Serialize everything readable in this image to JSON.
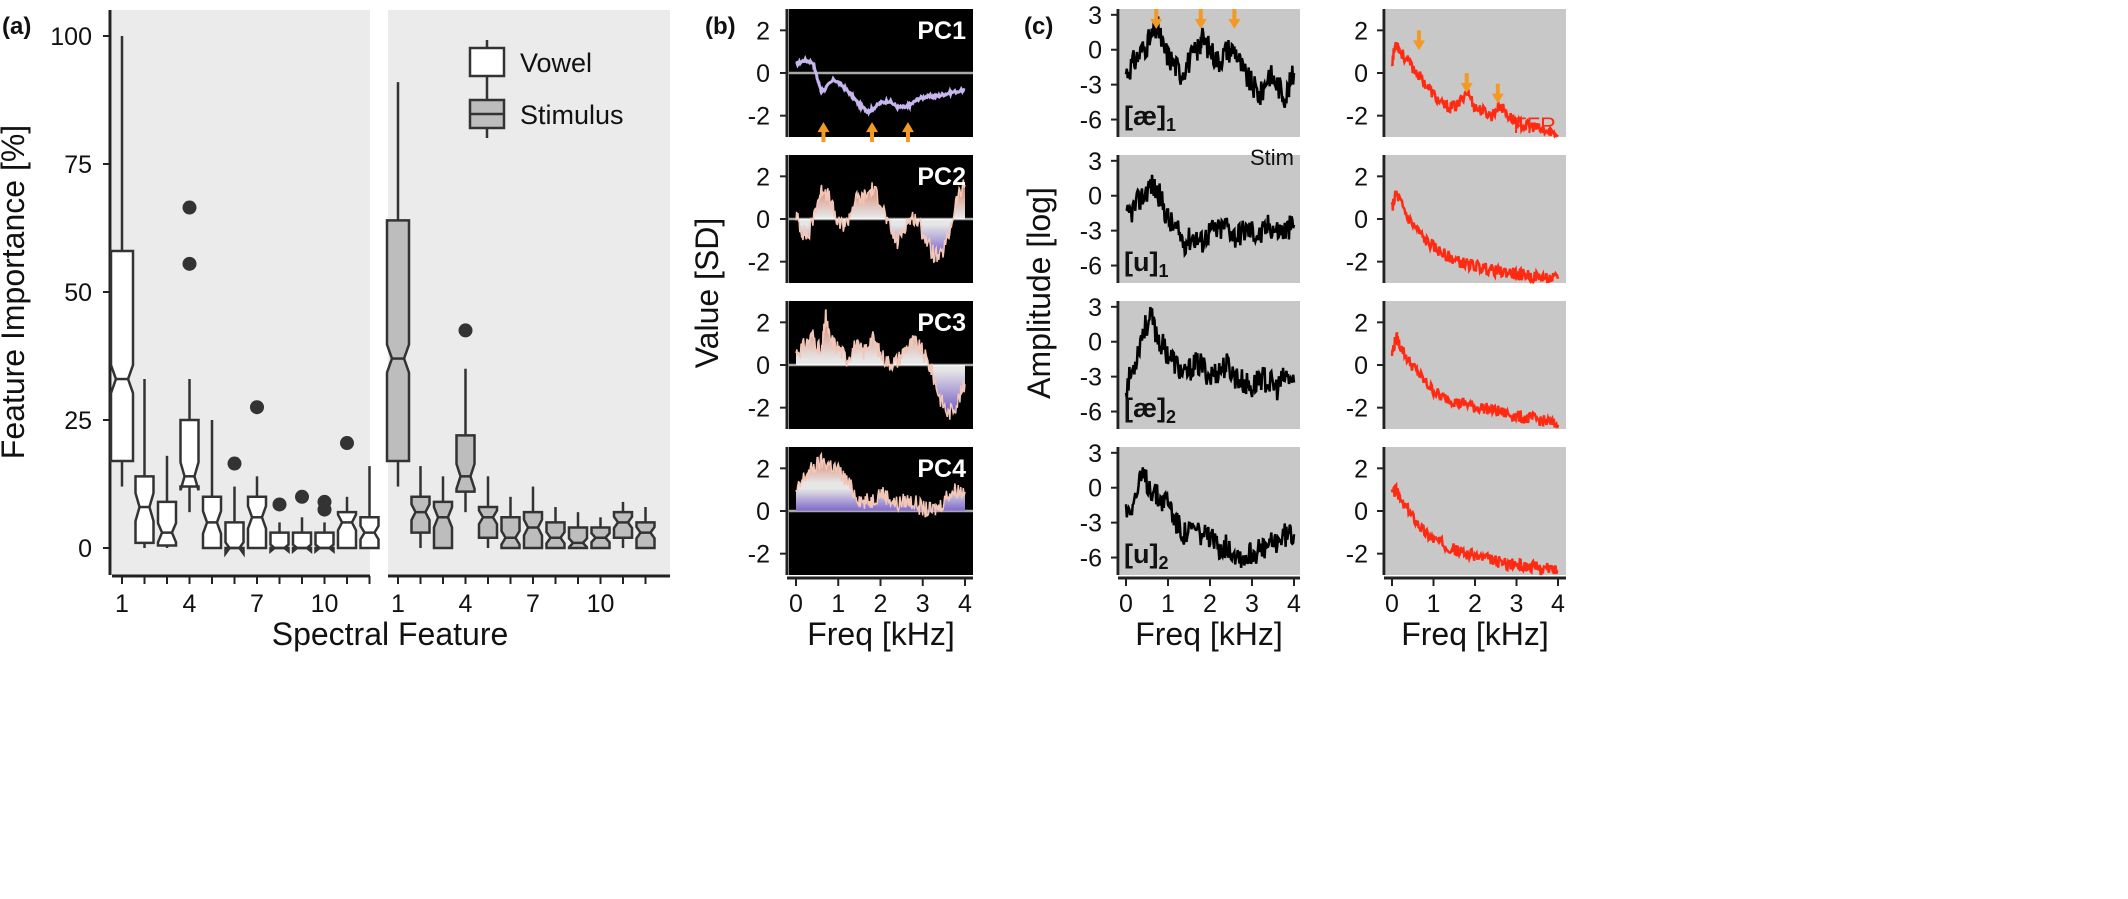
{
  "colors": {
    "panel_bg": "#ebebeb",
    "spec_bg": "#c8c8c8",
    "pc_bg": "#000000",
    "box_vowel": "#ffffff",
    "box_stim": "#bdbdbd",
    "box_line": "#333333",
    "outlier": "#333333",
    "stim_line": "#000000",
    "ffr_line": "#ff2a12",
    "arrow": "#f39a25",
    "pc_pos": "#f07c5e",
    "pc_neg": "#6a4bd6",
    "zero_line": "#a9a9a9"
  },
  "chart_data": [
    {
      "panel": "(a)",
      "type": "box",
      "xlabel": "Spectral Feature",
      "ylabel": "Feature Importance [%]",
      "ylim": [
        0,
        100
      ],
      "yticks": [
        0,
        25,
        50,
        75,
        100
      ],
      "xticks": [
        1,
        4,
        7,
        10
      ],
      "legend": {
        "position": "top-right",
        "entries": [
          "Vowel",
          "Stimulus"
        ]
      },
      "series": [
        {
          "name": "Vowel",
          "boxes": [
            {
              "feature": 1,
              "min": 12,
              "q1": 17,
              "median": 33,
              "q3": 58,
              "max": 100,
              "outliers": []
            },
            {
              "feature": 2,
              "min": 0,
              "q1": 1,
              "median": 8,
              "q3": 14,
              "max": 33,
              "outliers": []
            },
            {
              "feature": 3,
              "min": 0,
              "q1": 0.5,
              "median": 3,
              "q3": 9,
              "max": 18,
              "outliers": []
            },
            {
              "feature": 4,
              "min": 7,
              "q1": 12,
              "median": 14,
              "q3": 25,
              "max": 33,
              "outliers": [
                55.5,
                66.5
              ]
            },
            {
              "feature": 5,
              "min": 0,
              "q1": 0,
              "median": 5,
              "q3": 10,
              "max": 25,
              "outliers": []
            },
            {
              "feature": 6,
              "min": 0,
              "q1": 0,
              "median": 0,
              "q3": 5,
              "max": 12,
              "outliers": [
                16.5
              ]
            },
            {
              "feature": 7,
              "min": 0,
              "q1": 0,
              "median": 6,
              "q3": 10,
              "max": 14,
              "outliers": [
                27.5
              ]
            },
            {
              "feature": 8,
              "min": 0,
              "q1": 0,
              "median": 0,
              "q3": 3,
              "max": 5,
              "outliers": [
                8.5
              ]
            },
            {
              "feature": 9,
              "min": 0,
              "q1": 0,
              "median": 0,
              "q3": 3,
              "max": 6,
              "outliers": [
                10
              ]
            },
            {
              "feature": 10,
              "min": 0,
              "q1": 0,
              "median": 0,
              "q3": 3,
              "max": 5,
              "outliers": [
                7.5,
                9
              ]
            },
            {
              "feature": 11,
              "min": 0,
              "q1": 0,
              "median": 5,
              "q3": 7,
              "max": 10,
              "outliers": [
                20.5
              ]
            },
            {
              "feature": 12,
              "min": 0,
              "q1": 0,
              "median": 3,
              "q3": 6,
              "max": 16,
              "outliers": []
            }
          ]
        },
        {
          "name": "Stimulus",
          "boxes": [
            {
              "feature": 1,
              "min": 12,
              "q1": 17,
              "median": 37,
              "q3": 64,
              "max": 91,
              "outliers": []
            },
            {
              "feature": 2,
              "min": 0,
              "q1": 3,
              "median": 7,
              "q3": 10,
              "max": 16,
              "outliers": []
            },
            {
              "feature": 3,
              "min": 0,
              "q1": 0,
              "median": 6,
              "q3": 9,
              "max": 14,
              "outliers": []
            },
            {
              "feature": 4,
              "min": 7,
              "q1": 11,
              "median": 14,
              "q3": 22,
              "max": 35,
              "outliers": [
                42.5
              ]
            },
            {
              "feature": 5,
              "min": 0,
              "q1": 2,
              "median": 6,
              "q3": 8,
              "max": 14,
              "outliers": []
            },
            {
              "feature": 6,
              "min": 0,
              "q1": 0,
              "median": 2,
              "q3": 6,
              "max": 10,
              "outliers": []
            },
            {
              "feature": 7,
              "min": 0,
              "q1": 0,
              "median": 4,
              "q3": 7,
              "max": 12,
              "outliers": []
            },
            {
              "feature": 8,
              "min": 0,
              "q1": 0,
              "median": 2,
              "q3": 5,
              "max": 8,
              "outliers": []
            },
            {
              "feature": 9,
              "min": 0,
              "q1": 0,
              "median": 1,
              "q3": 4,
              "max": 7,
              "outliers": []
            },
            {
              "feature": 10,
              "min": 0,
              "q1": 0,
              "median": 2,
              "q3": 4,
              "max": 6,
              "outliers": []
            },
            {
              "feature": 11,
              "min": 0,
              "q1": 2,
              "median": 5,
              "q3": 7,
              "max": 9,
              "outliers": []
            },
            {
              "feature": 12,
              "min": 0,
              "q1": 0,
              "median": 3,
              "q3": 5,
              "max": 8,
              "outliers": []
            }
          ]
        }
      ]
    },
    {
      "panel": "(b)",
      "type": "line",
      "xlabel": "Freq [kHz]",
      "ylabel": "Value [SD]",
      "xlim": [
        0,
        4
      ],
      "ylim": [
        -3,
        3
      ],
      "xticks": [
        0,
        1,
        2,
        3,
        4
      ],
      "yticks": [
        -2,
        0,
        2
      ],
      "series": [
        {
          "name": "PC1",
          "x": [
            0,
            0.2,
            0.4,
            0.5,
            0.6,
            0.7,
            0.9,
            1.1,
            1.3,
            1.5,
            1.7,
            1.8,
            2.0,
            2.2,
            2.4,
            2.6,
            2.7,
            2.9,
            3.1,
            3.3,
            3.5,
            3.7,
            4.0
          ],
          "y": [
            0.4,
            0.6,
            0.5,
            -0.2,
            -0.9,
            -0.7,
            -0.3,
            -0.6,
            -1.0,
            -1.5,
            -1.8,
            -1.7,
            -1.4,
            -1.3,
            -1.6,
            -1.6,
            -1.5,
            -1.2,
            -1.1,
            -1.1,
            -1.0,
            -0.9,
            -0.8
          ],
          "arrows_x": [
            0.65,
            1.8,
            2.65
          ]
        },
        {
          "name": "PC2",
          "x": [
            0,
            0.15,
            0.3,
            0.5,
            0.65,
            0.8,
            1.0,
            1.2,
            1.4,
            1.6,
            1.8,
            2.0,
            2.2,
            2.4,
            2.6,
            2.8,
            3.0,
            3.2,
            3.4,
            3.6,
            3.8,
            4.0
          ],
          "y": [
            0.2,
            -0.6,
            -0.8,
            0.8,
            1.5,
            0.9,
            -0.3,
            -0.2,
            0.9,
            1.0,
            1.4,
            0.9,
            -0.4,
            -1.1,
            -0.2,
            0.1,
            -0.6,
            -1.5,
            -1.9,
            -0.9,
            0.9,
            1.6
          ]
        },
        {
          "name": "PC3",
          "x": [
            0,
            0.2,
            0.4,
            0.6,
            0.7,
            0.8,
            1.0,
            1.2,
            1.4,
            1.6,
            1.8,
            2.0,
            2.2,
            2.4,
            2.6,
            2.8,
            3.0,
            3.2,
            3.4,
            3.6,
            3.8,
            4.0
          ],
          "y": [
            0.6,
            0.9,
            1.4,
            0.5,
            2.3,
            1.2,
            0.8,
            0.3,
            0.9,
            0.6,
            1.3,
            0.5,
            0.1,
            0.2,
            0.8,
            1.1,
            0.6,
            -0.2,
            -1.5,
            -2.3,
            -1.8,
            -0.9
          ]
        },
        {
          "name": "PC4",
          "x": [
            0,
            0.2,
            0.4,
            0.6,
            0.8,
            1.0,
            1.2,
            1.4,
            1.6,
            1.8,
            2.0,
            2.2,
            2.4,
            2.6,
            2.8,
            3.0,
            3.2,
            3.4,
            3.6,
            3.8,
            4.0
          ],
          "y": [
            0.8,
            1.6,
            2.0,
            2.3,
            2.2,
            1.9,
            1.4,
            0.8,
            0.4,
            0.5,
            0.9,
            0.6,
            0.3,
            0.5,
            0.4,
            0.1,
            0,
            0.2,
            0.8,
            1.0,
            0.9
          ]
        }
      ]
    },
    {
      "panel": "(c)",
      "type": "line",
      "xlabel": "Freq [kHz]",
      "ylabel": "Amplitude [log]",
      "xlim": [
        0,
        4
      ],
      "xticks": [
        0,
        1,
        2,
        3,
        4
      ],
      "stim_yticks": [
        3,
        0,
        -3,
        -6
      ],
      "ffr_yticks": [
        2,
        0,
        -2
      ],
      "stim_label": "Stim",
      "ffr_label": "FFR",
      "rows": [
        {
          "label_prefix": "[æ]",
          "label_sub": "1",
          "stim": {
            "x": [
              0,
              0.2,
              0.4,
              0.6,
              0.75,
              0.9,
              1.1,
              1.3,
              1.5,
              1.7,
              1.8,
              2.0,
              2.2,
              2.4,
              2.6,
              2.8,
              3.0,
              3.2,
              3.4,
              3.6,
              3.8,
              4.0
            ],
            "y": [
              -2,
              -1,
              0,
              1,
              2,
              0,
              -1,
              -2,
              -1,
              0,
              1,
              0,
              -1,
              0,
              0,
              -2,
              -3,
              -4,
              -2,
              -3,
              -4,
              -2
            ]
          },
          "ffr": {
            "x": [
              0,
              0.1,
              0.2,
              0.4,
              0.6,
              0.8,
              1.0,
              1.2,
              1.4,
              1.6,
              1.8,
              2.0,
              2.2,
              2.4,
              2.6,
              2.8,
              3.0,
              3.2,
              3.4,
              3.6,
              3.8,
              4.0
            ],
            "y": [
              0.5,
              1.5,
              1.0,
              0.5,
              0,
              -0.5,
              -1.0,
              -1.5,
              -1.6,
              -1.5,
              -0.8,
              -1.6,
              -1.8,
              -2.0,
              -1.5,
              -2.0,
              -2.3,
              -2.5,
              -2.5,
              -2.7,
              -2.8,
              -2.9
            ]
          },
          "stim_arrows_x": [
            0.72,
            1.78,
            2.58
          ],
          "ffr_arrows_x": [
            0.65,
            1.8,
            2.55
          ]
        },
        {
          "label_prefix": "[u]",
          "label_sub": "1",
          "stim": {
            "x": [
              0,
              0.2,
              0.4,
              0.6,
              0.8,
              1.0,
              1.2,
              1.4,
              1.6,
              1.8,
              2.0,
              2.2,
              2.4,
              2.6,
              2.8,
              3.0,
              3.2,
              3.4,
              3.6,
              3.8,
              4.0
            ],
            "y": [
              -2,
              -1,
              0,
              1,
              0,
              -2,
              -3,
              -4,
              -3.5,
              -4,
              -3,
              -3,
              -2.5,
              -3.5,
              -3,
              -3,
              -3.5,
              -2.5,
              -3,
              -3,
              -2.5
            ]
          },
          "ffr": {
            "x": [
              0,
              0.1,
              0.2,
              0.4,
              0.6,
              0.8,
              1.0,
              1.2,
              1.4,
              1.6,
              1.8,
              2.0,
              2.2,
              2.4,
              2.6,
              2.8,
              3.0,
              3.2,
              3.4,
              3.6,
              3.8,
              4.0
            ],
            "y": [
              0.5,
              1.2,
              0.8,
              0,
              -0.5,
              -1.0,
              -1.3,
              -1.6,
              -1.8,
              -2.0,
              -2.1,
              -2.2,
              -2.3,
              -2.4,
              -2.5,
              -2.5,
              -2.6,
              -2.6,
              -2.7,
              -2.7,
              -2.8,
              -2.8
            ]
          }
        },
        {
          "label_prefix": "[æ]",
          "label_sub": "2",
          "stim": {
            "x": [
              0,
              0.2,
              0.4,
              0.6,
              0.8,
              1.0,
              1.2,
              1.4,
              1.6,
              1.8,
              2.0,
              2.2,
              2.4,
              2.6,
              2.8,
              3.0,
              3.2,
              3.4,
              3.6,
              3.8,
              4.0
            ],
            "y": [
              -4,
              -2,
              1,
              2,
              0,
              -1,
              -2,
              -3,
              -2,
              -2,
              -3,
              -2.5,
              -2,
              -3,
              -3.5,
              -4,
              -3,
              -3.5,
              -4,
              -3,
              -3.5
            ]
          },
          "ffr": {
            "x": [
              0,
              0.1,
              0.2,
              0.4,
              0.6,
              0.8,
              1.0,
              1.2,
              1.4,
              1.6,
              1.8,
              2.0,
              2.2,
              2.4,
              2.6,
              2.8,
              3.0,
              3.2,
              3.4,
              3.6,
              3.8,
              4.0
            ],
            "y": [
              0.5,
              1.3,
              0.9,
              0.2,
              -0.3,
              -0.8,
              -1.2,
              -1.5,
              -1.6,
              -1.8,
              -1.8,
              -2.0,
              -2.0,
              -2.1,
              -2.2,
              -2.3,
              -2.4,
              -2.5,
              -2.5,
              -2.6,
              -2.7,
              -2.8
            ]
          }
        },
        {
          "label_prefix": "[u]",
          "label_sub": "2",
          "stim": {
            "x": [
              0,
              0.2,
              0.4,
              0.6,
              0.8,
              1.0,
              1.2,
              1.4,
              1.6,
              1.8,
              2.0,
              2.2,
              2.4,
              2.6,
              2.8,
              3.0,
              3.2,
              3.4,
              3.6,
              3.8,
              4.0
            ],
            "y": [
              -2,
              -1,
              1,
              0,
              -1,
              -1,
              -3,
              -4,
              -3.5,
              -4,
              -4.5,
              -5,
              -5,
              -5.5,
              -6,
              -5.5,
              -5.5,
              -5,
              -4.5,
              -4,
              -4
            ]
          },
          "ffr": {
            "x": [
              0,
              0.1,
              0.2,
              0.4,
              0.6,
              0.8,
              1.0,
              1.2,
              1.4,
              1.6,
              1.8,
              2.0,
              2.2,
              2.4,
              2.6,
              2.8,
              3.0,
              3.2,
              3.4,
              3.6,
              3.8,
              4.0
            ],
            "y": [
              0.8,
              1.0,
              0.5,
              0,
              -0.5,
              -1.0,
              -1.3,
              -1.5,
              -1.7,
              -1.9,
              -2.0,
              -2.1,
              -2.2,
              -2.3,
              -2.4,
              -2.5,
              -2.5,
              -2.6,
              -2.6,
              -2.7,
              -2.7,
              -2.8
            ]
          }
        }
      ]
    }
  ]
}
